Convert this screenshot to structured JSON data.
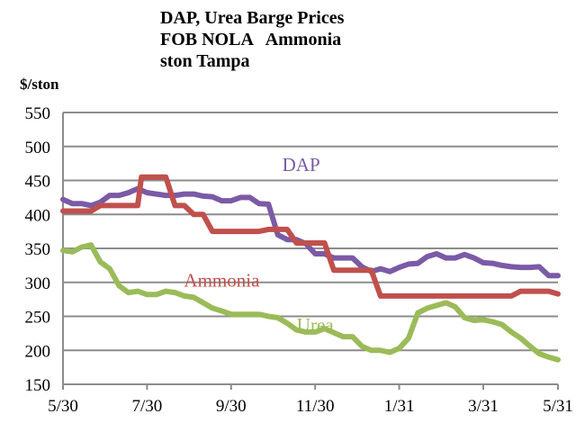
{
  "chart_data": {
    "type": "line",
    "title_lines": [
      "DAP, Urea Barge Prices",
      "FOB NOLA   Ammonia",
      "ston Tampa"
    ],
    "ylabel": "$/ston",
    "ylim": [
      150,
      550
    ],
    "yticks": [
      150,
      200,
      250,
      300,
      350,
      400,
      450,
      500,
      550
    ],
    "ytick_labels": [
      "150",
      "200",
      "250",
      "300",
      "350",
      "400",
      "450",
      "500",
      "550"
    ],
    "xlim": [
      0,
      53
    ],
    "xticks": [
      0,
      9,
      18,
      27,
      36,
      45,
      53
    ],
    "xtick_labels": [
      "5/30",
      "7/30",
      "9/30",
      "11/30",
      "1/31",
      "3/31",
      "5/31"
    ],
    "grid": true,
    "series": [
      {
        "name": "DAP",
        "color": "#7b5aa6",
        "label_pos": [
          25.5,
          464
        ],
        "x": [
          0,
          1,
          2,
          3,
          4,
          5,
          6,
          7,
          8,
          9,
          10,
          11,
          12,
          13,
          14,
          15,
          16,
          17,
          18,
          19,
          20,
          21,
          22,
          23,
          24,
          25,
          26,
          27,
          28,
          29,
          30,
          31,
          32,
          33,
          34,
          35,
          36,
          37,
          38,
          39,
          40,
          41,
          42,
          43,
          44,
          45,
          46,
          47,
          48,
          49,
          50,
          51,
          52,
          53
        ],
        "values": [
          422,
          416,
          416,
          413,
          418,
          428,
          428,
          432,
          438,
          432,
          430,
          428,
          428,
          430,
          430,
          427,
          426,
          420,
          420,
          425,
          425,
          416,
          415,
          370,
          363,
          363,
          357,
          342,
          342,
          336,
          336,
          336,
          323,
          316,
          320,
          316,
          322,
          327,
          328,
          338,
          342,
          336,
          336,
          341,
          336,
          329,
          328,
          325,
          323,
          322,
          322,
          323,
          310,
          310
        ]
      },
      {
        "name": "Ammonia",
        "color": "#c0504d",
        "label_pos": [
          17,
          294
        ],
        "x": [
          0,
          1,
          2,
          3,
          4,
          5,
          6,
          7,
          8,
          8.4,
          9,
          10,
          11,
          12,
          13,
          14,
          15,
          16,
          17,
          18,
          19,
          20,
          21,
          22,
          23,
          24,
          25,
          26,
          27,
          28,
          29,
          30,
          31,
          32,
          33,
          34,
          35,
          36,
          37,
          38,
          39,
          40,
          41,
          42,
          43,
          44,
          45,
          46,
          47,
          48,
          49,
          50,
          51,
          52,
          53
        ],
        "values": [
          405,
          405,
          405,
          405,
          413,
          413,
          413,
          413,
          413,
          455,
          455,
          455,
          455,
          413,
          413,
          400,
          400,
          375,
          375,
          375,
          375,
          375,
          375,
          378,
          378,
          378,
          358,
          358,
          358,
          358,
          318,
          318,
          318,
          318,
          318,
          280,
          280,
          280,
          280,
          280,
          280,
          280,
          280,
          280,
          280,
          280,
          280,
          280,
          280,
          280,
          287,
          287,
          287,
          287,
          283
        ]
      },
      {
        "name": "Urea",
        "color": "#9bbb59",
        "label_pos": [
          27,
          228
        ],
        "x": [
          0,
          1,
          2,
          3,
          4,
          5,
          6,
          7,
          8,
          9,
          10,
          11,
          12,
          13,
          14,
          15,
          16,
          17,
          18,
          19,
          20,
          21,
          22,
          23,
          24,
          25,
          26,
          27,
          28,
          29,
          30,
          31,
          32,
          33,
          34,
          35,
          36,
          37,
          38,
          39,
          40,
          41,
          42,
          43,
          44,
          45,
          46,
          47,
          48,
          49,
          50,
          51,
          52,
          53
        ],
        "values": [
          347,
          345,
          352,
          355,
          330,
          320,
          295,
          285,
          287,
          282,
          282,
          287,
          285,
          280,
          278,
          270,
          262,
          258,
          253,
          253,
          253,
          253,
          250,
          248,
          240,
          230,
          227,
          227,
          232,
          226,
          220,
          220,
          206,
          200,
          200,
          197,
          203,
          218,
          255,
          262,
          266,
          270,
          264,
          248,
          244,
          245,
          242,
          238,
          227,
          218,
          206,
          195,
          190,
          186
        ]
      }
    ]
  }
}
